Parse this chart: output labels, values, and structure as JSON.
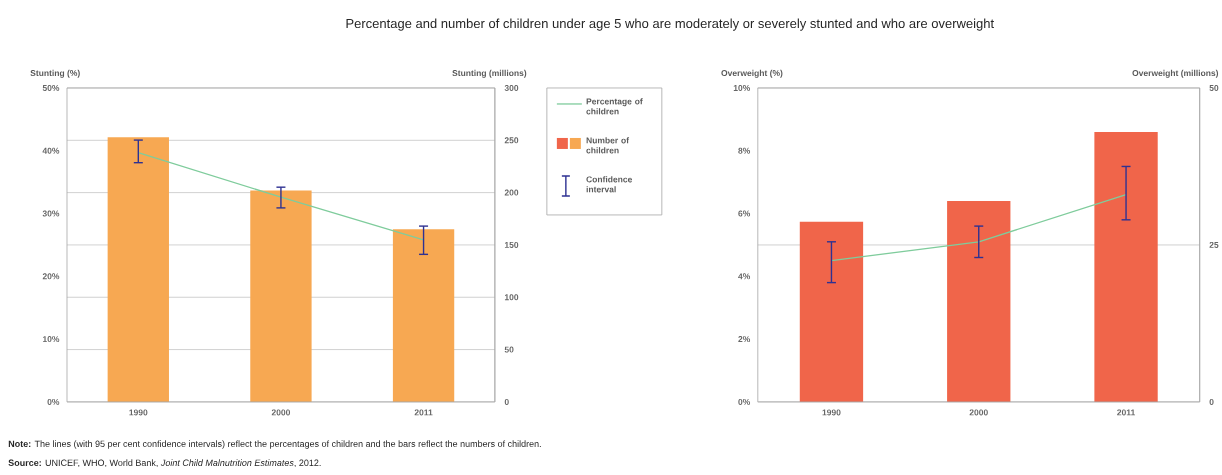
{
  "chart_data": [
    {
      "type": "bar",
      "title": "Percentage and number of children under age 5 who are moderately or severely stunted and who are overweight",
      "ylabel": "Stunting (%)",
      "y2label": "Stunting (millions)",
      "categories": [
        "1990",
        "2000",
        "2011"
      ],
      "series": [
        {
          "name": "Percentage of children",
          "type": "line",
          "color": "#7fcc9c",
          "values": [
            39.7,
            32.6,
            25.8
          ],
          "errors": [
            [
              38.1,
              41.7
            ],
            [
              30.9,
              34.2
            ],
            [
              23.5,
              28.0
            ]
          ]
        },
        {
          "name": "Number of children",
          "axis": "y2",
          "color": "#f7a852",
          "values": [
            253,
            202,
            165
          ]
        }
      ],
      "ylim": [
        0,
        50
      ],
      "yticks": [
        {
          "value": 0,
          "label": "0%"
        },
        {
          "value": 10,
          "label": "10%"
        },
        {
          "value": 20,
          "label": "20%"
        },
        {
          "value": 30,
          "label": "30%"
        },
        {
          "value": 40,
          "label": "40%"
        },
        {
          "value": 50,
          "label": "50%"
        }
      ],
      "y2lim": [
        0,
        300
      ],
      "y2ticks": [
        0,
        50,
        100,
        150,
        200,
        250,
        300
      ],
      "grid": true,
      "legend": "right",
      "annotations": [
        "Confidence interval",
        "**Note:** The lines (with 95 per cent confidence intervals) reflect the percentages of children and the bars reflect the numbers of children.",
        "**Source:** UNICEF, WHO, World Bank, *Joint Child Malnutrition Estimates*, 2012."
      ]
    },
    {
      "type": "bar",
      "ylabel": "Overweight (%)",
      "y2label": "Overweight (millions)",
      "categories": [
        "1990",
        "2000",
        "2011"
      ],
      "series": [
        {
          "type": "line",
          "color": "#7fcc9c",
          "values": [
            4.5,
            5.1,
            6.6
          ],
          "errors": [
            [
              3.8,
              5.1
            ],
            [
              4.6,
              5.6
            ],
            [
              5.8,
              7.5
            ]
          ]
        },
        {
          "axis": "y2",
          "color": "#f0654a",
          "values": [
            28.7,
            32.0,
            43.0
          ]
        }
      ],
      "ylim": [
        0,
        10
      ],
      "yticks": [
        {
          "value": 0,
          "label": "0%"
        },
        {
          "value": 2,
          "label": "2%"
        },
        {
          "value": 4,
          "label": "4%"
        },
        {
          "value": 6,
          "label": "6%"
        },
        {
          "value": 8,
          "label": "8%"
        },
        {
          "value": 10,
          "label": "10%"
        }
      ],
      "y2lim": [
        0,
        50
      ],
      "y2ticks": [
        0,
        25,
        50
      ],
      "grid": true
    }
  ]
}
